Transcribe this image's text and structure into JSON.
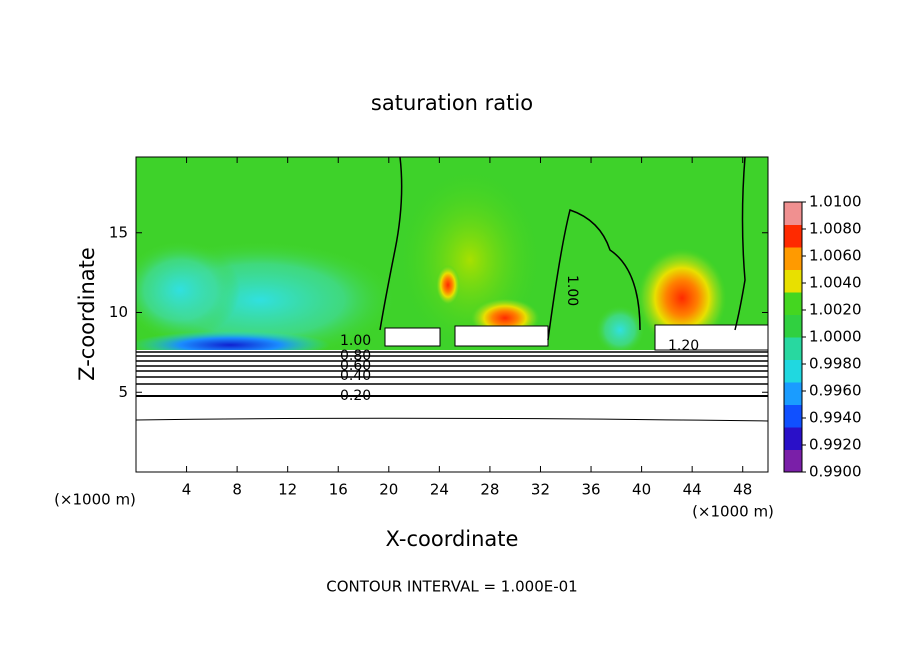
{
  "chart_data": {
    "type": "contour",
    "title": "saturation ratio",
    "x_label": "X-coordinate",
    "y_label": "Z-coordinate",
    "unit_labels": [
      "(×1000 m)",
      "(×1000 m)"
    ],
    "footer": "CONTOUR INTERVAL = 1.000E-01",
    "xlim": [
      0,
      50
    ],
    "ylim": [
      0,
      19.75
    ],
    "xticks": [
      4,
      8,
      12,
      16,
      20,
      24,
      28,
      32,
      36,
      40,
      44,
      48
    ],
    "yticks": [
      5,
      10,
      15
    ],
    "colorbar_lim": [
      0.99,
      1.01
    ],
    "colorbar_ticks": [
      {
        "value": 0.99,
        "label": "0.9900"
      },
      {
        "value": 0.992,
        "label": "0.9920"
      },
      {
        "value": 0.994,
        "label": "0.9940"
      },
      {
        "value": 0.996,
        "label": "0.9960"
      },
      {
        "value": 0.998,
        "label": "0.9980"
      },
      {
        "value": 1.0,
        "label": "1.0000"
      },
      {
        "value": 1.002,
        "label": "1.0020"
      },
      {
        "value": 1.004,
        "label": "1.0040"
      },
      {
        "value": 1.006,
        "label": "1.0060"
      },
      {
        "value": 1.008,
        "label": "1.0080"
      },
      {
        "value": 1.01,
        "label": "1.0100"
      }
    ],
    "colorscale": [
      "#7a1fa8",
      "#2a10c8",
      "#1050ff",
      "#1a9cff",
      "#20d8e0",
      "#28d8a0",
      "#30d040",
      "#44d620",
      "#e8e000",
      "#ff9a00",
      "#ff2a00",
      "#f09090"
    ],
    "contour_labels": [
      {
        "value": 1.0,
        "label": "1.00"
      },
      {
        "value": 0.8,
        "label": "0.80"
      },
      {
        "value": 0.6,
        "label": "0.60"
      },
      {
        "value": 0.4,
        "label": "0.40"
      },
      {
        "value": 0.2,
        "label": "0.20"
      },
      {
        "value": 1.2,
        "label": "1.20"
      },
      {
        "value": 1.0,
        "label": "1.00"
      }
    ]
  }
}
